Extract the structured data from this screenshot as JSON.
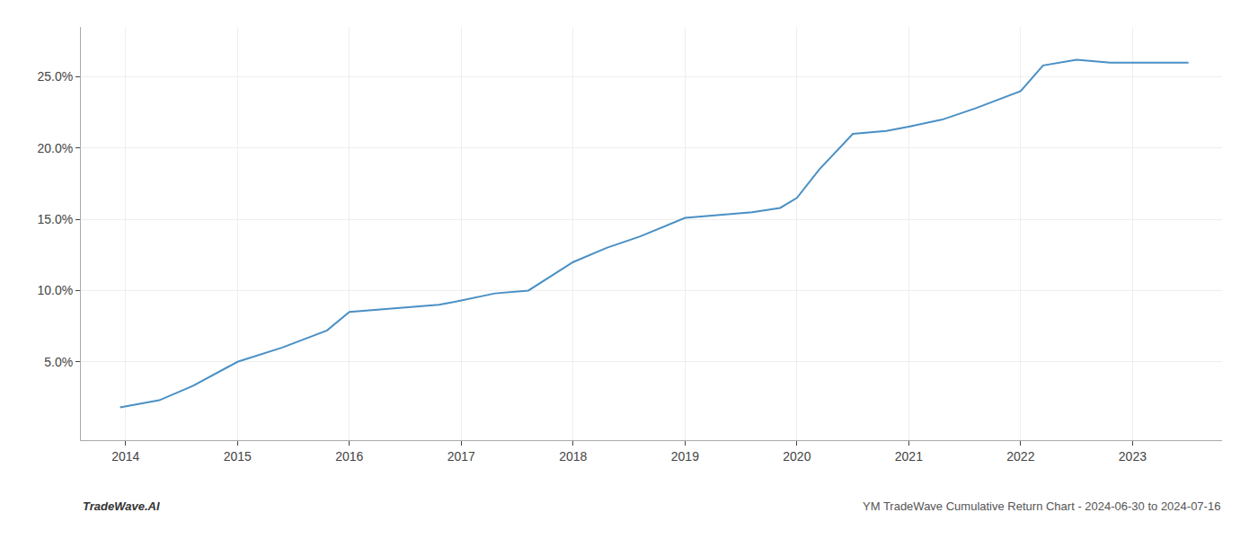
{
  "chart_data": {
    "type": "line",
    "x": [
      2013.95,
      2014.3,
      2014.6,
      2015.0,
      2015.4,
      2015.8,
      2016.0,
      2016.3,
      2016.5,
      2016.8,
      2017.0,
      2017.3,
      2017.6,
      2018.0,
      2018.3,
      2018.6,
      2019.0,
      2019.3,
      2019.6,
      2019.85,
      2020.0,
      2020.2,
      2020.5,
      2020.8,
      2021.0,
      2021.3,
      2021.6,
      2022.0,
      2022.2,
      2022.5,
      2022.8,
      2023.0,
      2023.5
    ],
    "values": [
      0.018,
      0.023,
      0.033,
      0.05,
      0.06,
      0.072,
      0.085,
      0.087,
      0.088,
      0.09,
      0.093,
      0.098,
      0.1,
      0.12,
      0.13,
      0.138,
      0.151,
      0.153,
      0.155,
      0.158,
      0.165,
      0.185,
      0.21,
      0.212,
      0.215,
      0.22,
      0.228,
      0.24,
      0.258,
      0.262,
      0.26,
      0.26,
      0.26
    ],
    "color": "#4a90c4",
    "xlim": [
      2013.6,
      2023.8
    ],
    "ylim": [
      -0.005,
      0.285
    ],
    "xticks": [
      2014,
      2015,
      2016,
      2017,
      2018,
      2019,
      2020,
      2021,
      2022,
      2023
    ],
    "yticks": [
      {
        "value": 0.05,
        "label": "5.0%"
      },
      {
        "value": 0.1,
        "label": "10.0%"
      },
      {
        "value": 0.15,
        "label": "15.0%"
      },
      {
        "value": 0.2,
        "label": "20.0%"
      },
      {
        "value": 0.25,
        "label": "25.0%"
      }
    ],
    "grid": true,
    "annotations": [
      "TradeWave.AI",
      "YM TradeWave Cumulative Return Chart - 2024-06-30 to 2024-07-16"
    ]
  }
}
